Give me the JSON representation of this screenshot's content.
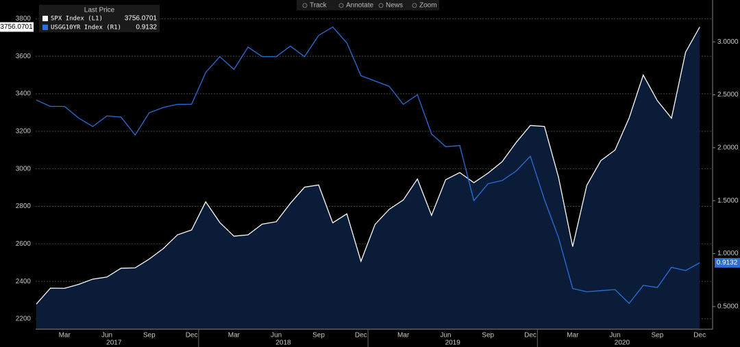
{
  "toolbar": [
    "Track",
    "Annotate",
    "News",
    "Zoom"
  ],
  "chart_data": {
    "type": "line",
    "legend_title": "Last Price",
    "categories": [
      null,
      null,
      "Mar",
      null,
      null,
      "Jun",
      null,
      null,
      "Sep",
      null,
      null,
      "Dec",
      null,
      null,
      "Mar",
      null,
      null,
      "Jun",
      null,
      null,
      "Sep",
      null,
      null,
      "Dec",
      null,
      null,
      "Mar",
      null,
      null,
      "Jun",
      null,
      null,
      "Sep",
      null,
      null,
      "Dec",
      null,
      null,
      "Mar",
      null,
      null,
      "Jun",
      null,
      null,
      "Sep",
      null,
      null,
      "Dec"
    ],
    "years": [
      "2017",
      "2018",
      "2019",
      "2020"
    ],
    "series": [
      {
        "name": "SPX Index (L1)",
        "color": "#ffffff",
        "fill": "#0b1c38",
        "axis": "y",
        "values": [
          2279,
          2364,
          2363,
          2384,
          2412,
          2423,
          2470,
          2472,
          2519,
          2575,
          2648,
          2674,
          2824,
          2714,
          2641,
          2648,
          2705,
          2718,
          2816,
          2902,
          2914,
          2712,
          2760,
          2507,
          2704,
          2784,
          2834,
          2946,
          2752,
          2942,
          2980,
          2926,
          2977,
          3038,
          3141,
          3231,
          3226,
          2954,
          2585,
          2912,
          3044,
          3100,
          3271,
          3500,
          3363,
          3270,
          3622,
          3756.0701
        ]
      },
      {
        "name": "USGG10YR Index (R1)",
        "color": "#2a6fd8",
        "axis": "y2",
        "values": [
          2.45,
          2.39,
          2.39,
          2.28,
          2.2,
          2.3,
          2.29,
          2.12,
          2.33,
          2.38,
          2.41,
          2.41,
          2.71,
          2.86,
          2.74,
          2.95,
          2.86,
          2.86,
          2.96,
          2.86,
          3.06,
          3.14,
          2.99,
          2.68,
          2.63,
          2.58,
          2.41,
          2.5,
          2.13,
          2.01,
          2.02,
          1.5,
          1.66,
          1.69,
          1.78,
          1.92,
          1.51,
          1.15,
          0.67,
          0.64,
          0.65,
          0.66,
          0.53,
          0.7,
          0.68,
          0.87,
          0.84,
          0.9132
        ]
      }
    ],
    "ylim": [
      2145,
      3900
    ],
    "yticks": [
      2200,
      2400,
      2600,
      2800,
      3000,
      3200,
      3400,
      3600,
      3800
    ],
    "y2lim": [
      0.286,
      3.395
    ],
    "y2ticks": [
      {
        "value": 0.5,
        "label": "0.5000"
      },
      {
        "value": 1.0,
        "label": "1.0000"
      },
      {
        "value": 1.5,
        "label": "1.5000"
      },
      {
        "value": 2.0,
        "label": "2.0000"
      },
      {
        "value": 2.5,
        "label": "2.5000"
      },
      {
        "value": 3.0,
        "label": "3.0000"
      }
    ],
    "grid": true
  }
}
